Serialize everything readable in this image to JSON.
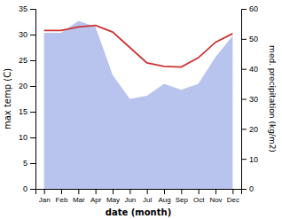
{
  "chart_data": {
    "type": "line",
    "categories": [
      "Jan",
      "Feb",
      "Mar",
      "Apr",
      "May",
      "Jun",
      "Jul",
      "Aug",
      "Sep",
      "Oct",
      "Nov",
      "Dec"
    ],
    "xlabel": "date (month)",
    "ylabel": "max temp (C)",
    "y2label": "med. precipitation (kg/m2)",
    "series": [
      {
        "type": "area",
        "axis": "y2",
        "color": "#b8c4ee",
        "values": [
          52,
          52,
          56,
          54,
          38,
          30,
          31,
          35,
          33,
          35,
          44,
          51
        ]
      },
      {
        "type": "line",
        "color": "#cc3333",
        "values": [
          30.8,
          30.8,
          31.5,
          31.8,
          30.5,
          27.5,
          24.5,
          23.8,
          23.7,
          25.5,
          28.5,
          30.2
        ]
      }
    ],
    "ylim": [
      0,
      35
    ],
    "yticks": [
      0,
      5,
      10,
      15,
      20,
      25,
      30,
      35
    ],
    "y2lim": [
      0,
      60
    ],
    "y2ticks": [
      0,
      10,
      20,
      30,
      40,
      50,
      60
    ]
  }
}
